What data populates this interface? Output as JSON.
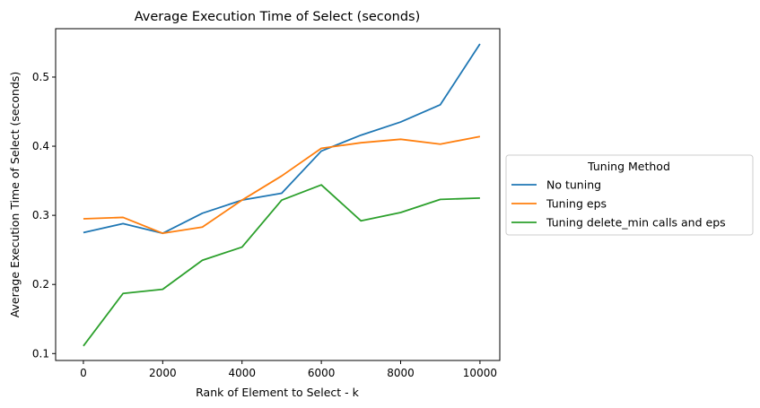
{
  "chart_data": {
    "type": "line",
    "title": "Average Execution Time of Select (seconds)",
    "xlabel": "Rank of Element to Select - k",
    "ylabel": "Average Execution Time of Select (seconds)",
    "xlim": [
      -700,
      10500
    ],
    "ylim": [
      0.09,
      0.57
    ],
    "xticks": [
      0,
      2000,
      4000,
      6000,
      8000,
      10000
    ],
    "yticks": [
      0.1,
      0.2,
      0.3,
      0.4,
      0.5
    ],
    "grid": false,
    "legend": {
      "title": "Tuning Method",
      "placement": "center-right outside plot"
    },
    "x": [
      0,
      1000,
      2000,
      3000,
      4000,
      5000,
      6000,
      7000,
      8000,
      9000,
      10000
    ],
    "series": [
      {
        "name": "No tuning",
        "color": "#1f77b4",
        "values": [
          0.275,
          0.288,
          0.274,
          0.303,
          0.322,
          0.332,
          0.393,
          0.416,
          0.435,
          0.46,
          0.548
        ]
      },
      {
        "name": "Tuning eps",
        "color": "#ff7f0e",
        "values": [
          0.295,
          0.297,
          0.274,
          0.283,
          0.322,
          0.357,
          0.397,
          0.405,
          0.41,
          0.403,
          0.414
        ]
      },
      {
        "name": "Tuning delete_min calls and eps",
        "color": "#2ca02c",
        "values": [
          0.111,
          0.187,
          0.193,
          0.235,
          0.254,
          0.322,
          0.344,
          0.292,
          0.304,
          0.323,
          0.325
        ]
      }
    ]
  }
}
